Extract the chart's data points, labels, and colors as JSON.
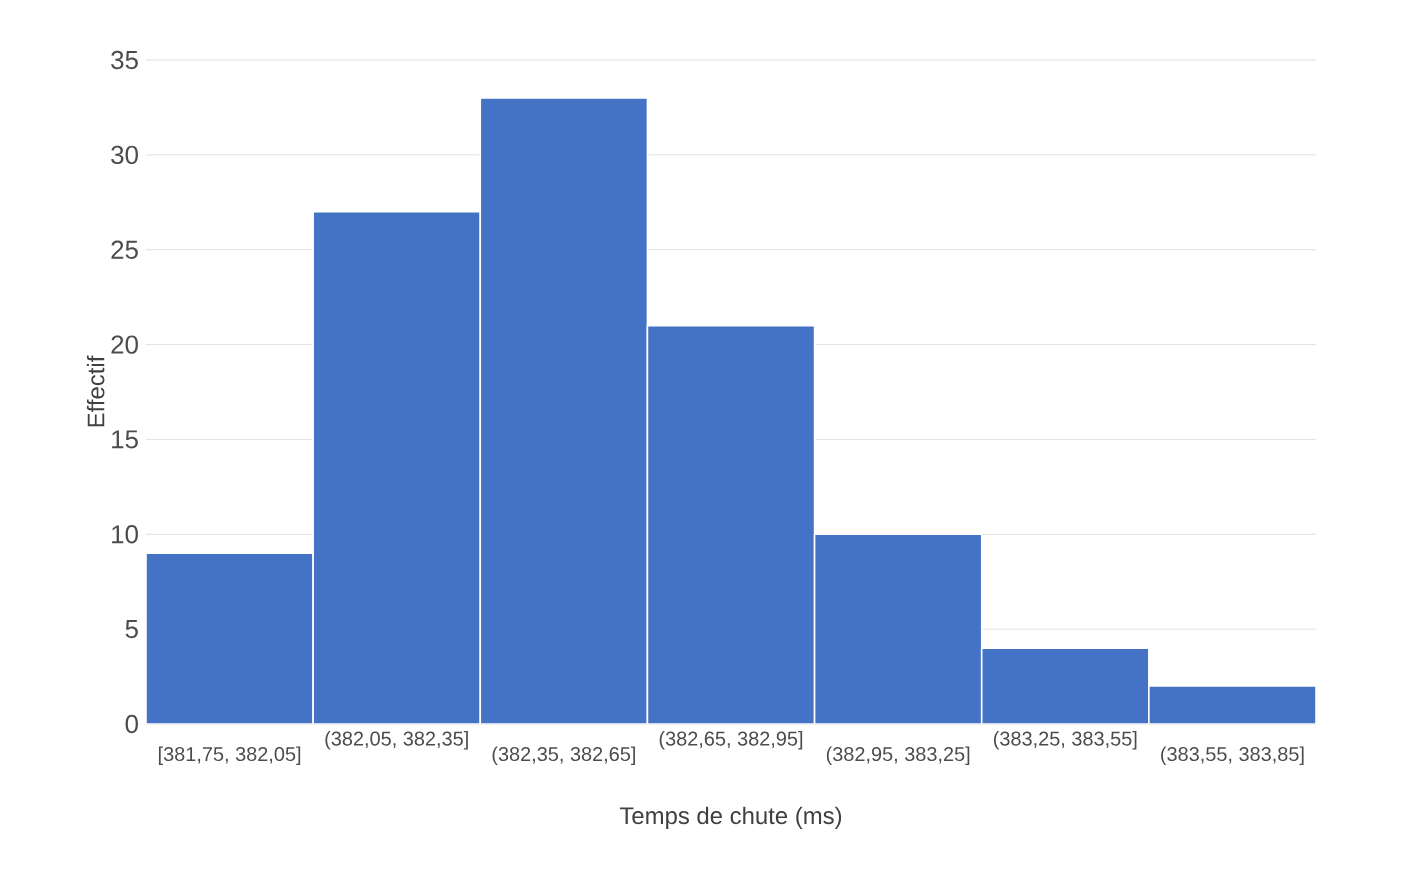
{
  "chart_data": {
    "type": "bar",
    "xlabel": "Temps de chute (ms)",
    "ylabel": "Effectif",
    "categories": [
      "[381,75, 382,05]",
      "(382,05, 382,35]",
      "(382,35, 382,65]",
      "(382,65, 382,95]",
      "(382,95, 383,25]",
      "(383,25, 383,55]",
      "(383,55, 383,85]"
    ],
    "values": [
      9,
      27,
      33,
      21,
      10,
      4,
      2
    ],
    "color": "#4472c4",
    "ylim": [
      0,
      35
    ],
    "yticks": [
      0,
      5,
      10,
      15,
      20,
      25,
      30,
      35
    ],
    "grid": "y"
  }
}
